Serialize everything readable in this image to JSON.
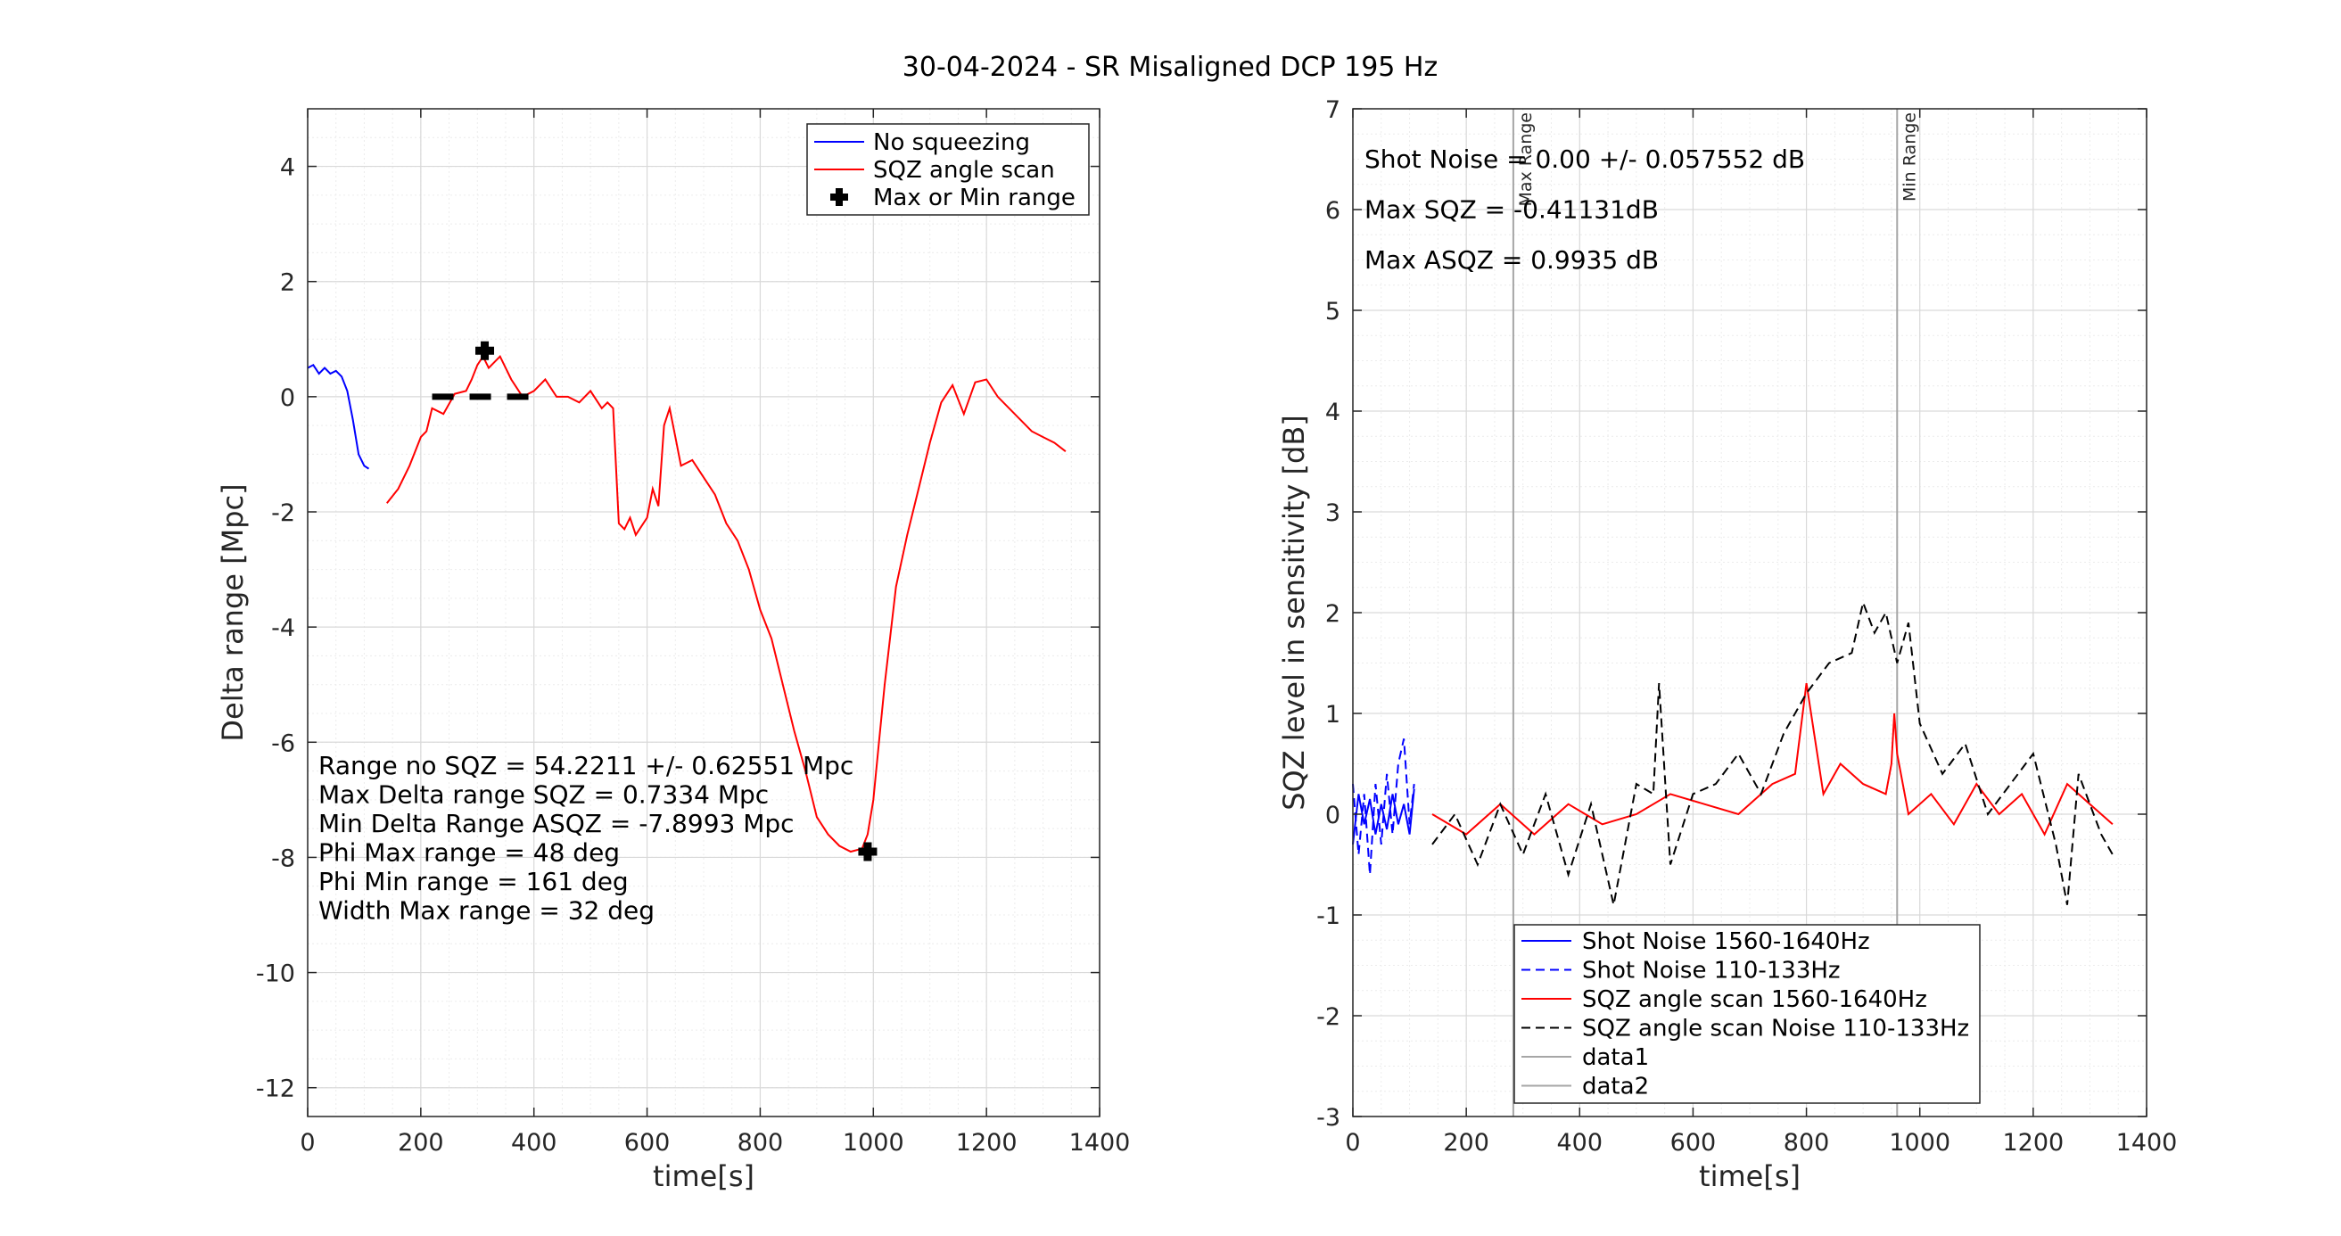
{
  "figure": {
    "title": "30-04-2024 - SR Misaligned DCP 195 Hz"
  },
  "chart_data": [
    {
      "type": "line",
      "xlabel": "time[s]",
      "ylabel": "Delta range [Mpc]",
      "xlim": [
        0,
        1400
      ],
      "ylim": [
        -12.5,
        5
      ],
      "xticks": [
        "0",
        "200",
        "400",
        "600",
        "800",
        "1000",
        "1200",
        "1400"
      ],
      "yticks": [
        "-12",
        "-10",
        "-8",
        "-6",
        "-4",
        "-2",
        "0",
        "2",
        "4"
      ],
      "grid": true,
      "legend_position": "top-right",
      "series": [
        {
          "name": "No squeezing",
          "color": "#0000ff",
          "x": [
            0,
            10,
            20,
            30,
            40,
            50,
            60,
            70,
            80,
            90,
            100,
            108
          ],
          "y": [
            0.5,
            0.55,
            0.4,
            0.5,
            0.4,
            0.45,
            0.35,
            0.1,
            -0.4,
            -1.0,
            -1.2,
            -1.25
          ]
        },
        {
          "name": "SQZ angle  scan",
          "color": "#ff0000",
          "x": [
            140,
            160,
            180,
            200,
            210,
            220,
            240,
            260,
            280,
            290,
            300,
            310,
            320,
            340,
            360,
            380,
            400,
            420,
            440,
            460,
            480,
            500,
            520,
            530,
            540,
            550,
            560,
            570,
            580,
            600,
            610,
            620,
            630,
            640,
            650,
            660,
            680,
            700,
            720,
            740,
            760,
            780,
            800,
            820,
            840,
            860,
            880,
            900,
            920,
            940,
            960,
            980,
            990,
            1000,
            1010,
            1020,
            1040,
            1060,
            1080,
            1100,
            1120,
            1140,
            1160,
            1180,
            1200,
            1220,
            1240,
            1260,
            1280,
            1300,
            1320,
            1340
          ],
          "y": [
            -1.85,
            -1.6,
            -1.2,
            -0.7,
            -0.6,
            -0.2,
            -0.3,
            0.05,
            0.1,
            0.3,
            0.55,
            0.7,
            0.5,
            0.7,
            0.3,
            0.0,
            0.1,
            0.3,
            0.0,
            0.0,
            -0.1,
            0.1,
            -0.2,
            -0.1,
            -0.2,
            -2.2,
            -2.3,
            -2.1,
            -2.4,
            -2.1,
            -1.6,
            -1.9,
            -0.5,
            -0.2,
            -0.7,
            -1.2,
            -1.1,
            -1.4,
            -1.7,
            -2.2,
            -2.5,
            -3.0,
            -3.7,
            -4.2,
            -5.0,
            -5.8,
            -6.5,
            -7.3,
            -7.6,
            -7.8,
            -7.9,
            -7.85,
            -7.6,
            -7.0,
            -6.0,
            -5.0,
            -3.3,
            -2.4,
            -1.6,
            -0.8,
            -0.1,
            0.2,
            -0.3,
            0.25,
            0.3,
            0.0,
            -0.2,
            -0.4,
            -0.6,
            -0.7,
            -0.8,
            -0.95
          ]
        }
      ],
      "markers": {
        "name": "Max or Min range",
        "points": [
          [
            313,
            0.8
          ],
          [
            990,
            -7.9
          ]
        ]
      },
      "dashed_line": {
        "x": [
          220,
          400
        ],
        "y": 0
      },
      "annotations": [
        "Range no SQZ = 54.2211 +/- 0.62551 Mpc",
        "Max Delta range SQZ = 0.7334 Mpc",
        "Min Delta Range ASQZ = -7.8993 Mpc",
        "Phi Max range = 48 deg",
        "Phi Min range = 161 deg",
        "Width Max range = 32 deg"
      ]
    },
    {
      "type": "line",
      "xlabel": "time[s]",
      "ylabel": "SQZ level in sensitivity [dB]",
      "xlim": [
        0,
        1400
      ],
      "ylim": [
        -3,
        7
      ],
      "xticks": [
        "0",
        "200",
        "400",
        "600",
        "800",
        "1000",
        "1200",
        "1400"
      ],
      "yticks": [
        "-3",
        "-2",
        "-1",
        "0",
        "1",
        "2",
        "3",
        "4",
        "5",
        "6",
        "7"
      ],
      "grid": true,
      "legend_position": "bottom-center",
      "vertical_lines": [
        {
          "x": 283,
          "label": "Max Range",
          "color": "#a6a6a6"
        },
        {
          "x": 960,
          "label": "Min Range",
          "color": "#a6a6a6"
        }
      ],
      "series": [
        {
          "name": "Shot Noise 1560-1640Hz",
          "color": "#0000ff",
          "style": "solid",
          "x": [
            0,
            10,
            20,
            30,
            40,
            50,
            60,
            70,
            80,
            90,
            100,
            108
          ],
          "y": [
            -0.3,
            0.2,
            -0.1,
            0.15,
            -0.2,
            0.1,
            -0.15,
            0.2,
            -0.1,
            0.1,
            -0.2,
            0.25
          ]
        },
        {
          "name": "Shot Noise 110-133Hz",
          "color": "#0000ff",
          "style": "dashed",
          "x": [
            0,
            10,
            20,
            30,
            40,
            50,
            60,
            70,
            80,
            90,
            100,
            108
          ],
          "y": [
            0.3,
            -0.4,
            0.2,
            -0.6,
            0.3,
            -0.3,
            0.4,
            -0.2,
            0.5,
            0.75,
            -0.1,
            0.3
          ]
        },
        {
          "name": "SQZ angle scan 1560-1640Hz",
          "color": "#ff0000",
          "style": "solid",
          "x": [
            140,
            200,
            260,
            320,
            380,
            440,
            500,
            560,
            620,
            680,
            740,
            780,
            800,
            830,
            860,
            900,
            940,
            950,
            955,
            960,
            980,
            1020,
            1060,
            1100,
            1140,
            1180,
            1220,
            1260,
            1300,
            1340
          ],
          "y": [
            0.0,
            -0.2,
            0.1,
            -0.2,
            0.1,
            -0.1,
            0.0,
            0.2,
            0.1,
            0.0,
            0.3,
            0.4,
            1.3,
            0.2,
            0.5,
            0.3,
            0.2,
            0.5,
            1.0,
            0.6,
            0.0,
            0.2,
            -0.1,
            0.3,
            0.0,
            0.2,
            -0.2,
            0.3,
            0.1,
            -0.1
          ]
        },
        {
          "name": "SQZ angle scan Noise 110-133Hz",
          "color": "#000000",
          "style": "dashed",
          "x": [
            140,
            180,
            220,
            260,
            300,
            340,
            380,
            420,
            460,
            500,
            530,
            540,
            560,
            600,
            640,
            680,
            720,
            760,
            800,
            840,
            880,
            900,
            920,
            940,
            960,
            980,
            1000,
            1040,
            1080,
            1120,
            1160,
            1200,
            1240,
            1260,
            1280,
            1320,
            1340
          ],
          "y": [
            -0.3,
            0.0,
            -0.5,
            0.1,
            -0.4,
            0.2,
            -0.6,
            0.1,
            -0.9,
            0.3,
            0.2,
            1.3,
            -0.5,
            0.2,
            0.3,
            0.6,
            0.2,
            0.8,
            1.2,
            1.5,
            1.6,
            2.1,
            1.8,
            2.0,
            1.5,
            1.9,
            0.9,
            0.4,
            0.7,
            0.0,
            0.3,
            0.6,
            -0.3,
            -0.9,
            0.4,
            -0.2,
            -0.4
          ]
        },
        {
          "name": "data1",
          "color": "#a6a6a6",
          "style": "solid",
          "x": [],
          "y": []
        },
        {
          "name": "data2",
          "color": "#a6a6a6",
          "style": "solid",
          "x": [],
          "y": []
        }
      ],
      "annotations": [
        "Shot Noise = 0.00 +/- 0.057552 dB",
        "Max  SQZ = -0.41131dB",
        "Max ASQZ = 0.9935 dB"
      ]
    }
  ]
}
